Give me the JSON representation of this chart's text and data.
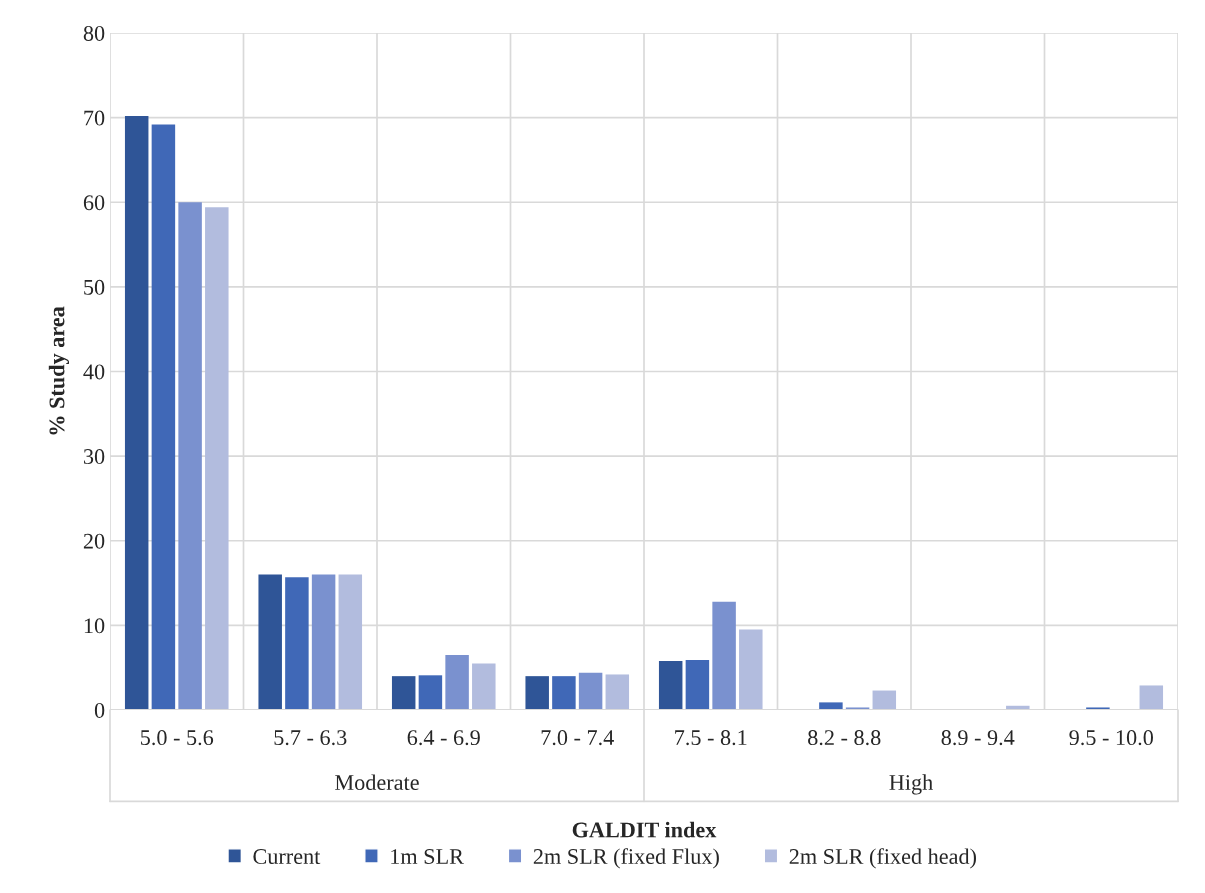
{
  "chart_data": {
    "type": "bar",
    "xlabel": "GALDIT index",
    "ylabel": "% Study area",
    "categories": [
      "5.0 - 5.6",
      "5.7 - 6.3",
      "6.4 - 6.9",
      "7.0 - 7.4",
      "7.5 - 8.1",
      "8.2 - 8.8",
      "8.9 - 9.4",
      "9.5 - 10.0"
    ],
    "series": [
      {
        "name": "Current",
        "color": "#2f5597",
        "values": [
          70.2,
          16.0,
          4.0,
          4.0,
          5.8,
          null,
          null,
          null
        ]
      },
      {
        "name": "1m SLR",
        "color": "#4068b7",
        "values": [
          69.2,
          15.7,
          4.1,
          4.0,
          5.9,
          0.9,
          null,
          0.3
        ]
      },
      {
        "name": "2m SLR (fixed Flux)",
        "color": "#7a91cf",
        "values": [
          60.0,
          16.0,
          6.5,
          4.4,
          12.8,
          0.3,
          null,
          null
        ]
      },
      {
        "name": "2m SLR (fixed head)",
        "color": "#b2bcde",
        "values": [
          59.4,
          16.0,
          5.5,
          4.2,
          9.5,
          2.3,
          0.5,
          2.9
        ]
      }
    ],
    "annotations": [
      "Moderate",
      "High"
    ],
    "ylim": [
      0,
      80
    ],
    "yticks": [
      0,
      10,
      20,
      30,
      40,
      50,
      60,
      70,
      80
    ],
    "grid": true,
    "legend": "bottom"
  }
}
